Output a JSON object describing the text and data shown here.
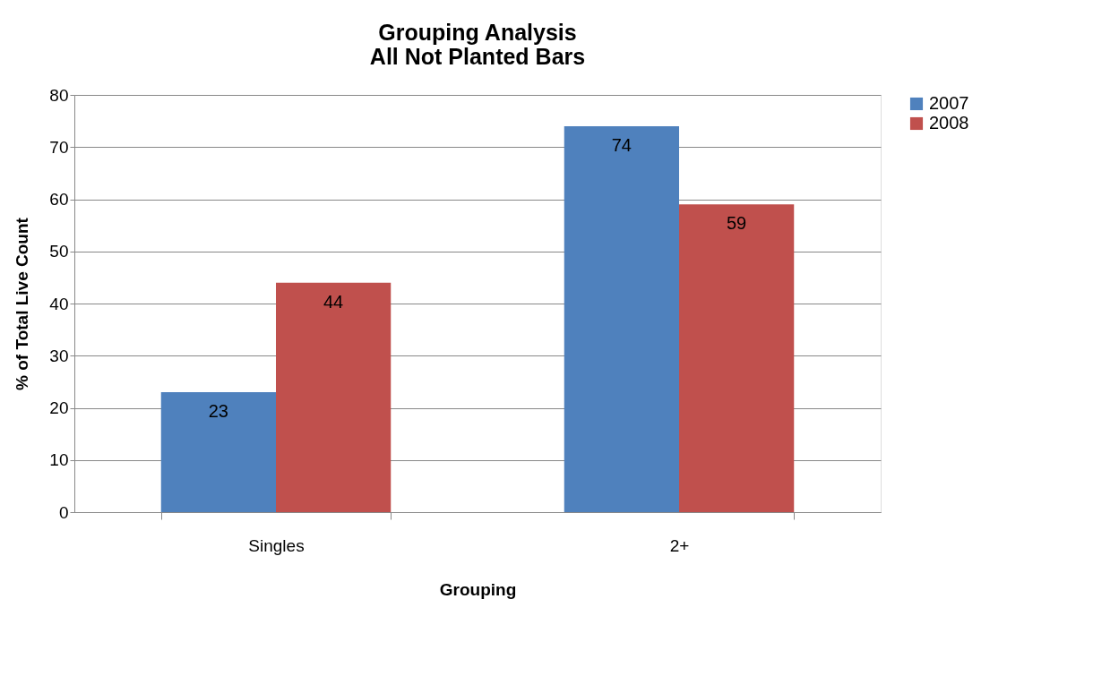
{
  "chart_data": {
    "type": "bar",
    "title": "Grouping Analysis\nAll Not Planted Bars",
    "xlabel": "Grouping",
    "ylabel": "% of Total Live Count",
    "categories": [
      "Singles",
      "2+"
    ],
    "series": [
      {
        "name": "2007",
        "color": "#4f81bd",
        "values": [
          23,
          74
        ]
      },
      {
        "name": "2008",
        "color": "#c0504d",
        "values": [
          44,
          59
        ]
      }
    ],
    "ylim": [
      0,
      80
    ],
    "yticks": [
      0,
      10,
      20,
      30,
      40,
      50,
      60,
      70,
      80
    ],
    "grid": "y",
    "legend": "right",
    "data_labels": true
  }
}
